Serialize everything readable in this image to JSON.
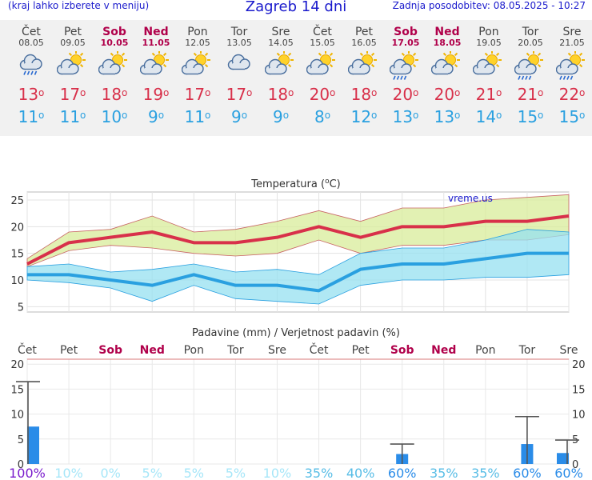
{
  "header": {
    "menu_hint": "(kraj lahko izberete v meniju)",
    "title": "Zagreb 14 dni",
    "updated": "Zadnja posodobitev: 08.05.2025 - 10:27"
  },
  "degree_symbol": "o",
  "forecast": [
    {
      "day": "Čet",
      "date": "08.05",
      "weekend": false,
      "icon": "cloud-rain-icon",
      "max": "13",
      "min": "11"
    },
    {
      "day": "Pet",
      "date": "09.05",
      "weekend": false,
      "icon": "sun-cloud-icon",
      "max": "17",
      "min": "11"
    },
    {
      "day": "Sob",
      "date": "10.05",
      "weekend": true,
      "icon": "sun-cloud-icon",
      "max": "18",
      "min": "10"
    },
    {
      "day": "Ned",
      "date": "11.05",
      "weekend": true,
      "icon": "sun-cloud-icon",
      "max": "19",
      "min": "9"
    },
    {
      "day": "Pon",
      "date": "12.05",
      "weekend": false,
      "icon": "sun-cloud-icon",
      "max": "17",
      "min": "11"
    },
    {
      "day": "Tor",
      "date": "13.05",
      "weekend": false,
      "icon": "cloud-icon",
      "max": "17",
      "min": "9"
    },
    {
      "day": "Sre",
      "date": "14.05",
      "weekend": false,
      "icon": "sun-cloud-icon",
      "max": "18",
      "min": "9"
    },
    {
      "day": "Čet",
      "date": "15.05",
      "weekend": false,
      "icon": "sun-cloud-icon",
      "max": "20",
      "min": "8"
    },
    {
      "day": "Pet",
      "date": "16.05",
      "weekend": false,
      "icon": "sun-cloud-icon",
      "max": "18",
      "min": "12"
    },
    {
      "day": "Sob",
      "date": "17.05",
      "weekend": true,
      "icon": "sun-cloud-rain-icon",
      "max": "20",
      "min": "13"
    },
    {
      "day": "Ned",
      "date": "18.05",
      "weekend": true,
      "icon": "sun-cloud-icon",
      "max": "20",
      "min": "13"
    },
    {
      "day": "Pon",
      "date": "19.05",
      "weekend": false,
      "icon": "sun-cloud-icon",
      "max": "21",
      "min": "14"
    },
    {
      "day": "Tor",
      "date": "20.05",
      "weekend": false,
      "icon": "sun-cloud-rain-icon",
      "max": "21",
      "min": "15"
    },
    {
      "day": "Sre",
      "date": "21.05",
      "weekend": false,
      "icon": "sun-cloud-rain-icon",
      "max": "22",
      "min": "15"
    }
  ],
  "colors": {
    "max": "#d8304a",
    "min": "#2aa0e0",
    "weekend": "#b0004a",
    "max_band": "#d8ec9a",
    "min_band": "#96e0f0",
    "rain_bar": "#2a8ce8"
  },
  "chart_data": [
    {
      "type": "line",
      "title": "Temperatura (oC)",
      "watermark": "vreme.us",
      "categories": [
        "Čet",
        "Pet",
        "Sob",
        "Ned",
        "Pon",
        "Tor",
        "Sre",
        "Čet",
        "Pet",
        "Sob",
        "Ned",
        "Pon",
        "Tor",
        "Sre"
      ],
      "series": [
        {
          "values": [
            13,
            17,
            18,
            19,
            17,
            17,
            18,
            20,
            18,
            20,
            20,
            21,
            21,
            22
          ]
        },
        {
          "values": [
            11,
            11,
            10,
            9,
            11,
            9,
            9,
            8,
            12,
            13,
            13,
            14,
            15,
            15
          ]
        }
      ],
      "max_band_upper": [
        14,
        19,
        19.5,
        22,
        19,
        19.5,
        21,
        23,
        21,
        23.5,
        23.5,
        25,
        25.5,
        26
      ],
      "max_band_lower": [
        12.5,
        15.5,
        16.5,
        16,
        15,
        14.5,
        15,
        17.5,
        15,
        16.5,
        16.5,
        17.5,
        17.5,
        18.5
      ],
      "min_band_upper": [
        12.5,
        13,
        11.5,
        12,
        13,
        11.5,
        12,
        11,
        15,
        16,
        16,
        17.5,
        19.5,
        19
      ],
      "min_band_lower": [
        10,
        9.5,
        8.5,
        6,
        9,
        6.5,
        6,
        5.5,
        9,
        10,
        10,
        10.5,
        10.5,
        11
      ],
      "yticks": [
        5,
        10,
        15,
        20,
        25
      ],
      "ylim": [
        4,
        26.5
      ],
      "grid": true
    },
    {
      "type": "bar",
      "title": "Padavine (mm) / Verjetnost padavin (%)",
      "categories": [
        "Čet",
        "Pet",
        "Sob",
        "Ned",
        "Pon",
        "Tor",
        "Sre",
        "Čet",
        "Pet",
        "Sob",
        "Ned",
        "Pon",
        "Tor",
        "Sre"
      ],
      "weekend": [
        false,
        false,
        true,
        true,
        false,
        false,
        false,
        false,
        false,
        true,
        true,
        false,
        false,
        false
      ],
      "values": [
        7.5,
        0,
        0,
        0,
        0,
        0,
        0,
        0,
        0,
        2,
        0,
        0,
        4,
        2.2
      ],
      "error_high": [
        16.5,
        0,
        0,
        0,
        0,
        0,
        0,
        0,
        0,
        4,
        0,
        0,
        9.5,
        4.8
      ],
      "probability": [
        "100%",
        "10%",
        "0%",
        "5%",
        "5%",
        "5%",
        "10%",
        "35%",
        "40%",
        "60%",
        "35%",
        "35%",
        "60%",
        "60%"
      ],
      "probability_colors": [
        "#7a1ccc",
        "#a6e6f8",
        "#a6e6f8",
        "#a6e6f8",
        "#a6e6f8",
        "#a6e6f8",
        "#a6e6f8",
        "#58bde6",
        "#58bde6",
        "#2a8ce8",
        "#58bde6",
        "#58bde6",
        "#2a8ce8",
        "#2a8ce8"
      ],
      "yticks": [
        0,
        5,
        10,
        15,
        20
      ],
      "ylim": [
        0,
        21
      ],
      "grid": true
    }
  ]
}
